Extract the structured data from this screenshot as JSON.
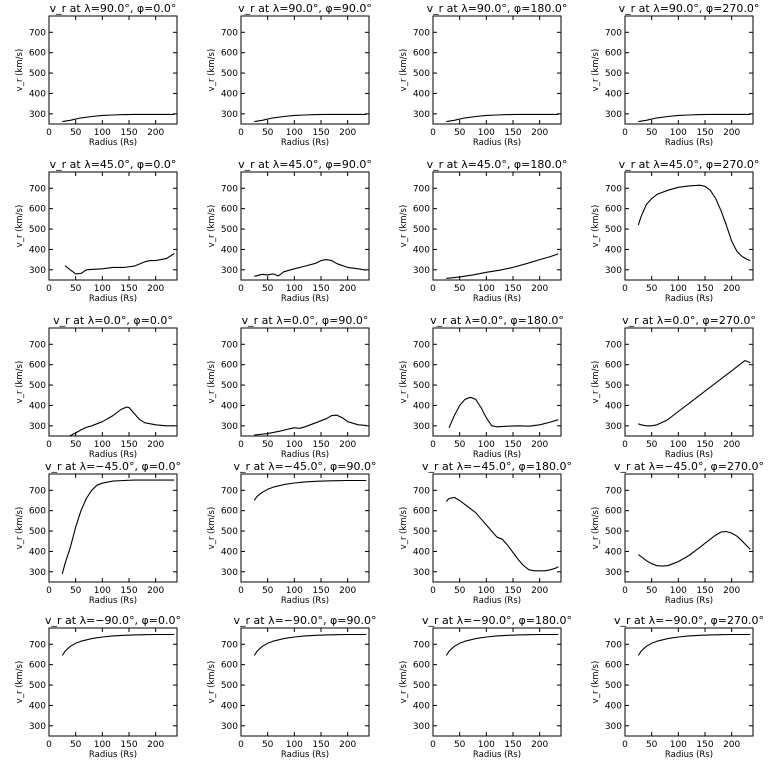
{
  "chart_data": [
    {
      "type": "line",
      "title": "v_r at λ=90.0°, φ=0.0°",
      "xlabel": "Radius (Rs)",
      "ylabel": "v_r (km/s)",
      "xlim": [
        0,
        240
      ],
      "ylim": [
        250,
        780
      ],
      "x": [
        25,
        40,
        60,
        80,
        100,
        120,
        140,
        160,
        180,
        200,
        220,
        235
      ],
      "y": [
        262,
        268,
        280,
        287,
        292,
        294,
        296,
        297,
        297,
        297,
        297,
        297
      ]
    },
    {
      "type": "line",
      "title": "v_r at λ=90.0°, φ=90.0°",
      "xlabel": "Radius (Rs)",
      "ylabel": "v_r (km/s)",
      "xlim": [
        0,
        240
      ],
      "ylim": [
        250,
        780
      ],
      "x": [
        25,
        40,
        60,
        80,
        100,
        120,
        140,
        160,
        180,
        200,
        220,
        235
      ],
      "y": [
        262,
        268,
        280,
        287,
        292,
        294,
        296,
        297,
        297,
        297,
        297,
        297
      ]
    },
    {
      "type": "line",
      "title": "v_r at λ=90.0°, φ=180.0°",
      "xlabel": "Radius (Rs)",
      "ylabel": "v_r (km/s)",
      "xlim": [
        0,
        240
      ],
      "ylim": [
        250,
        780
      ],
      "x": [
        25,
        40,
        60,
        80,
        100,
        120,
        140,
        160,
        180,
        200,
        220,
        235
      ],
      "y": [
        262,
        268,
        280,
        287,
        292,
        294,
        296,
        297,
        297,
        297,
        297,
        297
      ]
    },
    {
      "type": "line",
      "title": "v_r at λ=90.0°, φ=270.0°",
      "xlabel": "Radius (Rs)",
      "ylabel": "v_r (km/s)",
      "xlim": [
        0,
        240
      ],
      "ylim": [
        250,
        780
      ],
      "x": [
        25,
        40,
        60,
        80,
        100,
        120,
        140,
        160,
        180,
        200,
        220,
        235
      ],
      "y": [
        262,
        268,
        280,
        287,
        292,
        294,
        296,
        297,
        297,
        297,
        297,
        297
      ]
    },
    {
      "type": "line",
      "title": "v_r at λ=45.0°, φ=0.0°",
      "xlabel": "Radius (Rs)",
      "ylabel": "v_r (km/s)",
      "xlim": [
        0,
        240
      ],
      "ylim": [
        250,
        780
      ],
      "x": [
        30,
        40,
        50,
        60,
        70,
        80,
        100,
        120,
        140,
        160,
        180,
        190,
        200,
        220,
        235
      ],
      "y": [
        320,
        300,
        280,
        282,
        300,
        302,
        305,
        312,
        312,
        318,
        340,
        345,
        345,
        355,
        380
      ]
    },
    {
      "type": "line",
      "title": "v_r at λ=45.0°, φ=90.0°",
      "xlabel": "Radius (Rs)",
      "ylabel": "v_r (km/s)",
      "xlim": [
        0,
        240
      ],
      "ylim": [
        250,
        780
      ],
      "x": [
        25,
        40,
        50,
        60,
        70,
        80,
        100,
        120,
        140,
        150,
        160,
        170,
        180,
        200,
        220,
        235
      ],
      "y": [
        268,
        278,
        275,
        280,
        270,
        290,
        305,
        318,
        332,
        345,
        350,
        345,
        330,
        312,
        305,
        298
      ]
    },
    {
      "type": "line",
      "title": "v_r at λ=45.0°, φ=180.0°",
      "xlabel": "Radius (Rs)",
      "ylabel": "v_r (km/s)",
      "xlim": [
        0,
        240
      ],
      "ylim": [
        250,
        780
      ],
      "x": [
        25,
        50,
        75,
        100,
        125,
        150,
        175,
        200,
        220,
        235
      ],
      "y": [
        258,
        265,
        275,
        288,
        298,
        312,
        330,
        350,
        365,
        378
      ]
    },
    {
      "type": "line",
      "title": "v_r at λ=45.0°, φ=270.0°",
      "xlabel": "Radius (Rs)",
      "ylabel": "v_r (km/s)",
      "xlim": [
        0,
        240
      ],
      "ylim": [
        250,
        780
      ],
      "x": [
        25,
        30,
        40,
        50,
        60,
        80,
        100,
        120,
        140,
        150,
        160,
        170,
        180,
        190,
        200,
        210,
        220,
        230,
        235
      ],
      "y": [
        520,
        560,
        620,
        650,
        670,
        690,
        705,
        712,
        715,
        710,
        690,
        650,
        590,
        520,
        440,
        390,
        365,
        350,
        345
      ]
    },
    {
      "type": "line",
      "title": "v_r at λ=0.0°, φ=0.0°",
      "xlabel": "Radius (Rs)",
      "ylabel": "v_r (km/s)",
      "xlim": [
        0,
        240
      ],
      "ylim": [
        250,
        780
      ],
      "x": [
        25,
        40,
        50,
        60,
        70,
        80,
        100,
        120,
        135,
        145,
        150,
        160,
        170,
        180,
        200,
        220,
        235
      ],
      "y": [
        240,
        252,
        265,
        280,
        292,
        300,
        320,
        350,
        380,
        392,
        390,
        360,
        330,
        315,
        305,
        300,
        300
      ]
    },
    {
      "type": "line",
      "title": "v_r at λ=0.0°, φ=90.0°",
      "xlabel": "Radius (Rs)",
      "ylabel": "v_r (km/s)",
      "xlim": [
        0,
        240
      ],
      "ylim": [
        250,
        780
      ],
      "x": [
        25,
        50,
        75,
        90,
        100,
        110,
        120,
        140,
        160,
        170,
        180,
        190,
        200,
        220,
        235
      ],
      "y": [
        255,
        262,
        275,
        285,
        290,
        288,
        295,
        315,
        335,
        350,
        352,
        340,
        320,
        305,
        302
      ]
    },
    {
      "type": "line",
      "title": "v_r at λ=0.0°, φ=180.0°",
      "xlabel": "Radius (Rs)",
      "ylabel": "v_r (km/s)",
      "xlim": [
        0,
        240
      ],
      "ylim": [
        250,
        780
      ],
      "x": [
        30,
        40,
        50,
        60,
        70,
        80,
        90,
        100,
        110,
        120,
        140,
        160,
        180,
        200,
        220,
        235
      ],
      "y": [
        290,
        350,
        400,
        430,
        440,
        430,
        390,
        340,
        300,
        295,
        298,
        300,
        298,
        305,
        318,
        330
      ]
    },
    {
      "type": "line",
      "title": "v_r at λ=0.0°, φ=270.0°",
      "xlabel": "Radius (Rs)",
      "ylabel": "v_r (km/s)",
      "xlim": [
        0,
        240
      ],
      "ylim": [
        250,
        780
      ],
      "x": [
        25,
        30,
        40,
        50,
        60,
        80,
        100,
        120,
        140,
        160,
        180,
        200,
        210,
        220,
        225,
        235
      ],
      "y": [
        310,
        305,
        300,
        300,
        305,
        330,
        370,
        410,
        450,
        490,
        530,
        570,
        590,
        610,
        620,
        610
      ]
    },
    {
      "type": "line",
      "title": "v_r at λ=−45.0°, φ=0.0°",
      "xlabel": "Radius (Rs)",
      "ylabel": "v_r (km/s)",
      "xlim": [
        0,
        240
      ],
      "ylim": [
        250,
        780
      ],
      "x": [
        25,
        30,
        40,
        50,
        60,
        70,
        80,
        90,
        100,
        120,
        140,
        160,
        180,
        200,
        220,
        235
      ],
      "y": [
        290,
        340,
        420,
        520,
        600,
        660,
        700,
        725,
        735,
        745,
        748,
        750,
        750,
        750,
        750,
        750
      ]
    },
    {
      "type": "line",
      "title": "v_r at λ=−45.0°, φ=90.0°",
      "xlabel": "Radius (Rs)",
      "ylabel": "v_r (km/s)",
      "xlim": [
        0,
        240
      ],
      "ylim": [
        250,
        780
      ],
      "x": [
        25,
        30,
        40,
        50,
        60,
        80,
        100,
        120,
        140,
        160,
        180,
        200,
        220,
        235
      ],
      "y": [
        650,
        670,
        690,
        705,
        715,
        728,
        736,
        741,
        744,
        746,
        747,
        748,
        748,
        748
      ]
    },
    {
      "type": "line",
      "title": "v_r at λ=−45.0°, φ=180.0°",
      "xlabel": "Radius (Rs)",
      "ylabel": "v_r (km/s)",
      "xlim": [
        0,
        240
      ],
      "ylim": [
        250,
        780
      ],
      "x": [
        25,
        30,
        40,
        50,
        60,
        70,
        80,
        90,
        100,
        110,
        120,
        130,
        140,
        150,
        160,
        170,
        180,
        190,
        200,
        210,
        220,
        230,
        235
      ],
      "y": [
        645,
        660,
        665,
        650,
        630,
        610,
        590,
        560,
        530,
        500,
        470,
        460,
        430,
        395,
        360,
        330,
        310,
        305,
        305,
        305,
        310,
        318,
        325
      ]
    },
    {
      "type": "line",
      "title": "v_r at λ=−45.0°, φ=270.0°",
      "xlabel": "Radius (Rs)",
      "ylabel": "v_r (km/s)",
      "xlim": [
        0,
        240
      ],
      "ylim": [
        250,
        780
      ],
      "x": [
        25,
        40,
        50,
        60,
        70,
        80,
        90,
        100,
        120,
        140,
        160,
        170,
        180,
        190,
        200,
        210,
        220,
        235
      ],
      "y": [
        385,
        355,
        340,
        330,
        328,
        330,
        340,
        350,
        380,
        420,
        460,
        480,
        495,
        498,
        490,
        475,
        450,
        410
      ]
    },
    {
      "type": "line",
      "title": "v_r at λ=−90.0°, φ=0.0°",
      "xlabel": "Radius (Rs)",
      "ylabel": "v_r (km/s)",
      "xlim": [
        0,
        240
      ],
      "ylim": [
        250,
        780
      ],
      "x": [
        25,
        30,
        40,
        50,
        60,
        80,
        100,
        120,
        140,
        160,
        180,
        200,
        220,
        235
      ],
      "y": [
        645,
        665,
        690,
        705,
        715,
        728,
        736,
        741,
        744,
        746,
        747,
        748,
        748,
        748
      ]
    },
    {
      "type": "line",
      "title": "v_r at λ=−90.0°, φ=90.0°",
      "xlabel": "Radius (Rs)",
      "ylabel": "v_r (km/s)",
      "xlim": [
        0,
        240
      ],
      "ylim": [
        250,
        780
      ],
      "x": [
        25,
        30,
        40,
        50,
        60,
        80,
        100,
        120,
        140,
        160,
        180,
        200,
        220,
        235
      ],
      "y": [
        645,
        665,
        690,
        705,
        715,
        728,
        736,
        741,
        744,
        746,
        747,
        748,
        748,
        748
      ]
    },
    {
      "type": "line",
      "title": "v_r at λ=−90.0°, φ=180.0°",
      "xlabel": "Radius (Rs)",
      "ylabel": "v_r (km/s)",
      "xlim": [
        0,
        240
      ],
      "ylim": [
        250,
        780
      ],
      "x": [
        25,
        30,
        40,
        50,
        60,
        80,
        100,
        120,
        140,
        160,
        180,
        200,
        220,
        235
      ],
      "y": [
        645,
        665,
        690,
        705,
        715,
        728,
        736,
        741,
        744,
        746,
        747,
        748,
        748,
        748
      ]
    },
    {
      "type": "line",
      "title": "v_r at λ=−90.0°, φ=270.0°",
      "xlabel": "Radius (Rs)",
      "ylabel": "v_r (km/s)",
      "xlim": [
        0,
        240
      ],
      "ylim": [
        250,
        780
      ],
      "x": [
        25,
        30,
        40,
        50,
        60,
        80,
        100,
        120,
        140,
        160,
        180,
        200,
        220,
        235
      ],
      "y": [
        645,
        665,
        690,
        705,
        715,
        728,
        736,
        741,
        744,
        746,
        747,
        748,
        748,
        748
      ]
    }
  ],
  "xticks": [
    0,
    50,
    100,
    150,
    200
  ],
  "yticks": [
    300,
    400,
    500,
    600,
    700
  ]
}
